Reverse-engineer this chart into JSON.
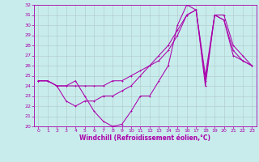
{
  "xlabel": "Windchill (Refroidissement éolien,°C)",
  "bg_color": "#c8ecec",
  "grid_color": "#b0c8c8",
  "line_color": "#aa00aa",
  "xlim": [
    -0.5,
    23.5
  ],
  "ylim": [
    20,
    32
  ],
  "yticks": [
    20,
    21,
    22,
    23,
    24,
    25,
    26,
    27,
    28,
    29,
    30,
    31,
    32
  ],
  "xticks": [
    0,
    1,
    2,
    3,
    4,
    5,
    6,
    7,
    8,
    9,
    10,
    11,
    12,
    13,
    14,
    15,
    16,
    17,
    18,
    19,
    20,
    21,
    22,
    23
  ],
  "line1_x": [
    0,
    1,
    2,
    3,
    4,
    5,
    6,
    7,
    8,
    9,
    10,
    11,
    12,
    13,
    14,
    15,
    16,
    17,
    18,
    19,
    20,
    21,
    22,
    23
  ],
  "line1_y": [
    24.5,
    24.5,
    24.0,
    24.0,
    24.5,
    23.0,
    21.5,
    20.5,
    20.0,
    20.2,
    21.5,
    23.0,
    23.0,
    24.5,
    26.0,
    30.0,
    32.0,
    31.5,
    24.5,
    31.0,
    30.5,
    27.0,
    26.5,
    26.0
  ],
  "line2_x": [
    0,
    1,
    2,
    3,
    4,
    5,
    6,
    7,
    8,
    9,
    10,
    11,
    12,
    13,
    14,
    15,
    16,
    17,
    18,
    19,
    20,
    21,
    22,
    23
  ],
  "line2_y": [
    24.5,
    24.5,
    24.0,
    22.5,
    22.0,
    22.5,
    22.5,
    23.0,
    23.0,
    23.5,
    24.0,
    25.0,
    26.0,
    27.0,
    28.0,
    29.5,
    31.0,
    31.5,
    24.0,
    31.0,
    31.0,
    28.0,
    27.0,
    26.0
  ],
  "line3_x": [
    0,
    1,
    2,
    3,
    4,
    5,
    6,
    7,
    8,
    9,
    10,
    11,
    12,
    13,
    14,
    15,
    16,
    17,
    18,
    19,
    20,
    21,
    22,
    23
  ],
  "line3_y": [
    24.5,
    24.5,
    24.0,
    24.0,
    24.0,
    24.0,
    24.0,
    24.0,
    24.5,
    24.5,
    25.0,
    25.5,
    26.0,
    26.5,
    27.5,
    29.0,
    31.0,
    31.5,
    25.0,
    31.0,
    30.5,
    27.5,
    26.5,
    26.0
  ],
  "xlabel_fontsize": 5.5,
  "tick_fontsize": 4.5,
  "lw": 0.75,
  "ms": 2.0
}
